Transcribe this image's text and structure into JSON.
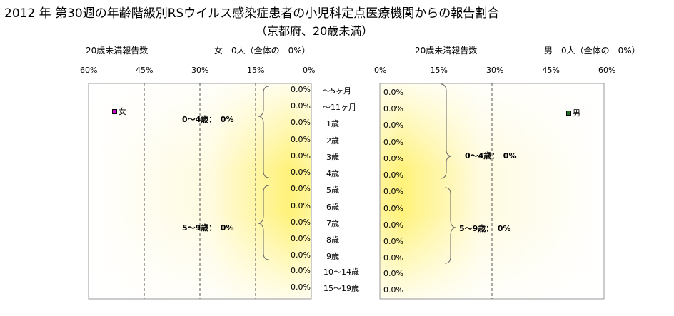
{
  "title_line1": "2012 年 第30週の年齢階級別RSウイルス感染症患者の小児科定点医療機関からの報告割合",
  "title_line2": "（京都府、20歳未満）",
  "left_panel": {
    "header_count_label": "20歳未満報告数",
    "header_total": "女　0人（全体の　0%）",
    "legend": "女",
    "legend_color": "#cc00cc",
    "group_label_0_4": "0～4歳：　0%",
    "group_label_5_9": "5～9歳：　0%",
    "ticks": [
      "60%",
      "45%",
      "30%",
      "15%",
      "0%"
    ]
  },
  "right_panel": {
    "header_count_label": "20歳未満報告数",
    "header_total": "男　0人（全体の　0%）",
    "legend": "男",
    "legend_color": "#1f6f1f",
    "group_label_0_4": "0～4歳：　0%",
    "group_label_5_9": "5～9歳：　0%",
    "ticks": [
      "0%",
      "15%",
      "30%",
      "45%",
      "60%"
    ]
  },
  "categories": [
    "～5ヶ月",
    "～11ヶ月",
    "1歳",
    "2歳",
    "3歳",
    "4歳",
    "5歳",
    "6歳",
    "7歳",
    "8歳",
    "9歳",
    "10～14歳",
    "15～19歳"
  ],
  "chart_data": {
    "type": "bar",
    "orientation": "horizontal",
    "categories": [
      "～5ヶ月",
      "～11ヶ月",
      "1歳",
      "2歳",
      "3歳",
      "4歳",
      "5歳",
      "6歳",
      "7歳",
      "8歳",
      "9歳",
      "10～14歳",
      "15～19歳"
    ],
    "series": [
      {
        "name": "女",
        "values": [
          0,
          0,
          0,
          0,
          0,
          0,
          0,
          0,
          0,
          0,
          0,
          0,
          0
        ],
        "labels": [
          "0.0%",
          "0.0%",
          "0.0%",
          "0.0%",
          "0.0%",
          "0.0%",
          "0.0%",
          "0.0%",
          "0.0%",
          "0.0%",
          "0.0%",
          "0.0%",
          "0.0%"
        ]
      },
      {
        "name": "男",
        "values": [
          0,
          0,
          0,
          0,
          0,
          0,
          0,
          0,
          0,
          0,
          0,
          0,
          0
        ],
        "labels": [
          "0.0%",
          "0.0%",
          "0.0%",
          "0.0%",
          "0.0%",
          "0.0%",
          "0.0%",
          "0.0%",
          "0.0%",
          "0.0%",
          "0.0%",
          "0.0%",
          "0.0%"
        ]
      }
    ],
    "xlim": [
      0,
      60
    ],
    "grid": true,
    "background": "yellow radial gradient"
  }
}
